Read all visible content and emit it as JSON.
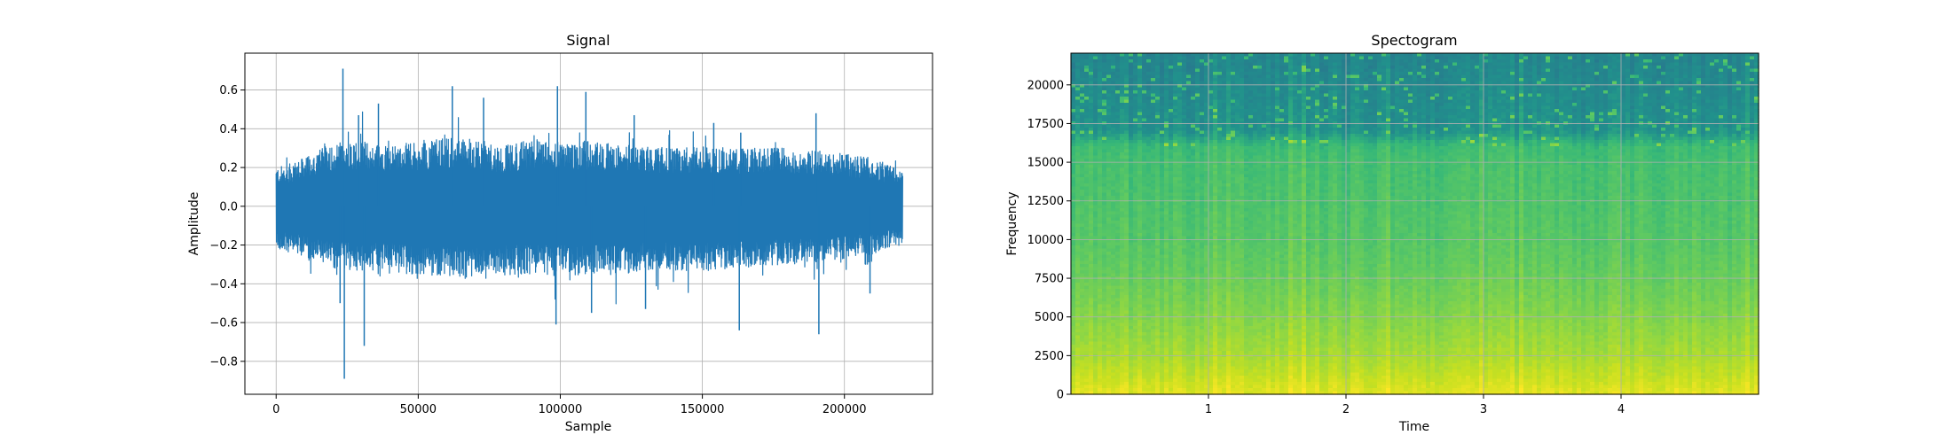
{
  "figure": {
    "background": "#ffffff"
  },
  "chart_data": [
    {
      "type": "line",
      "title": "Signal",
      "xlabel": "Sample",
      "ylabel": "Amplitude",
      "xlim": [
        -11000,
        231000
      ],
      "ylim": [
        -0.97,
        0.79
      ],
      "x_ticks": [
        0,
        50000,
        100000,
        150000,
        200000
      ],
      "y_ticks": [
        -0.8,
        -0.6,
        -0.4,
        -0.2,
        0.0,
        0.2,
        0.4,
        0.6
      ],
      "x_tick_labels": [
        "0",
        "50000",
        "100000",
        "150000",
        "200000"
      ],
      "y_tick_labels": [
        "−0.8",
        "−0.6",
        "−0.4",
        "−0.2",
        "0.0",
        "0.2",
        "0.4",
        "0.6"
      ],
      "grid": true,
      "line_color": "#1f77b4",
      "series": [
        {
          "x_start": 0,
          "x_end": 220500,
          "envelope_x": [
            0,
            5000,
            10000,
            20000,
            30000,
            40000,
            50000,
            60000,
            70000,
            80000,
            90000,
            100000,
            110000,
            120000,
            130000,
            140000,
            150000,
            160000,
            170000,
            180000,
            190000,
            200000,
            210000,
            220500
          ],
          "envelope_max": [
            0.2,
            0.22,
            0.25,
            0.33,
            0.34,
            0.32,
            0.33,
            0.36,
            0.35,
            0.31,
            0.35,
            0.33,
            0.34,
            0.32,
            0.31,
            0.3,
            0.31,
            0.3,
            0.3,
            0.3,
            0.29,
            0.27,
            0.25,
            0.18
          ],
          "envelope_min": [
            -0.22,
            -0.25,
            -0.27,
            -0.33,
            -0.33,
            -0.34,
            -0.36,
            -0.36,
            -0.38,
            -0.36,
            -0.35,
            -0.36,
            -0.35,
            -0.36,
            -0.33,
            -0.33,
            -0.34,
            -0.32,
            -0.31,
            -0.3,
            -0.29,
            -0.27,
            -0.25,
            -0.2
          ],
          "peaks": [
            {
              "x": 23500,
              "y": 0.71
            },
            {
              "x": 24000,
              "y": -0.89
            },
            {
              "x": 31000,
              "y": -0.72
            },
            {
              "x": 22500,
              "y": -0.5
            },
            {
              "x": 29000,
              "y": 0.47
            },
            {
              "x": 36000,
              "y": 0.53
            },
            {
              "x": 62000,
              "y": 0.62
            },
            {
              "x": 73000,
              "y": 0.56
            },
            {
              "x": 99000,
              "y": 0.62
            },
            {
              "x": 98500,
              "y": -0.61
            },
            {
              "x": 109000,
              "y": 0.59
            },
            {
              "x": 111000,
              "y": -0.55
            },
            {
              "x": 126000,
              "y": 0.47
            },
            {
              "x": 130000,
              "y": -0.53
            },
            {
              "x": 163000,
              "y": -0.64
            },
            {
              "x": 163500,
              "y": 0.38
            },
            {
              "x": 190000,
              "y": 0.48
            },
            {
              "x": 191000,
              "y": -0.66
            },
            {
              "x": 209000,
              "y": -0.45
            },
            {
              "x": 154000,
              "y": 0.43
            }
          ]
        }
      ]
    },
    {
      "type": "heatmap",
      "title": "Spectogram",
      "xlabel": "Time",
      "ylabel": "Frequency",
      "xlim": [
        0.0,
        5.0
      ],
      "ylim": [
        0,
        22050
      ],
      "x_ticks": [
        1,
        2,
        3,
        4
      ],
      "y_ticks": [
        0,
        2500,
        5000,
        7500,
        10000,
        12500,
        15000,
        17500,
        20000
      ],
      "x_tick_labels": [
        "1",
        "2",
        "3",
        "4"
      ],
      "y_tick_labels": [
        "0",
        "2500",
        "5000",
        "7500",
        "10000",
        "12500",
        "15000",
        "17500",
        "20000"
      ],
      "grid": true,
      "colormap": "viridis",
      "cutoff_frequency": 16000,
      "frequency_profile": [
        {
          "f": 0,
          "level": 0.95
        },
        {
          "f": 1000,
          "level": 0.9
        },
        {
          "f": 2500,
          "level": 0.84
        },
        {
          "f": 4000,
          "level": 0.8
        },
        {
          "f": 6000,
          "level": 0.75
        },
        {
          "f": 8000,
          "level": 0.71
        },
        {
          "f": 10000,
          "level": 0.68
        },
        {
          "f": 12500,
          "level": 0.66
        },
        {
          "f": 15000,
          "level": 0.64
        },
        {
          "f": 16000,
          "level": 0.62
        },
        {
          "f": 17000,
          "level": 0.5
        },
        {
          "f": 22050,
          "level": 0.45
        }
      ]
    }
  ]
}
